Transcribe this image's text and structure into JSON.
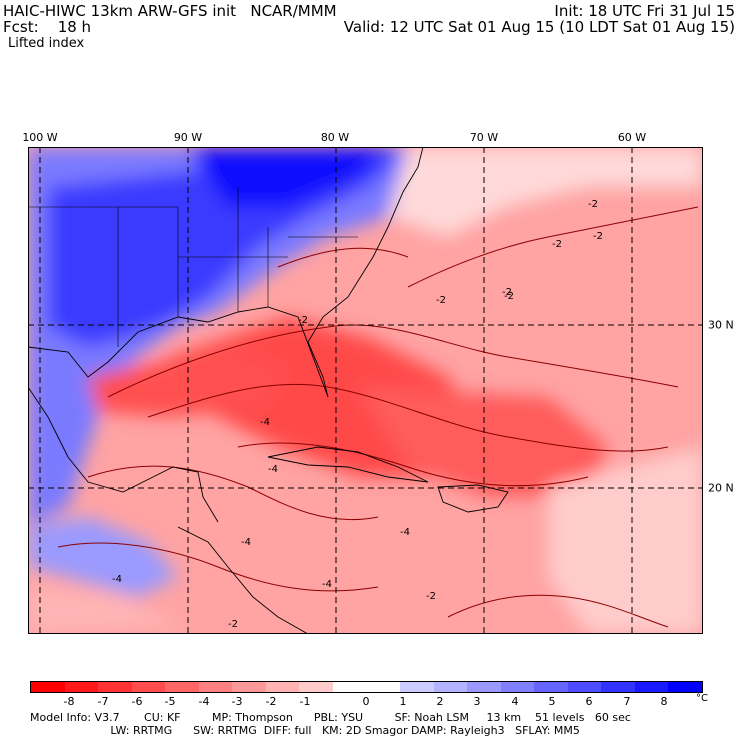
{
  "header": {
    "title_left": "HAIC-HIWC 13km ARW-GFS init   NCAR/MMM",
    "fcst": "Fcst:    18 h",
    "field": "Lifted index",
    "init": "Init: 18 UTC Fri 31 Jul 15",
    "valid": "Valid: 12 UTC Sat 01 Aug 15 (10 LDT Sat 01 Aug 15)"
  },
  "map": {
    "lon_labels": [
      "100 W",
      "90 W",
      "80 W",
      "70 W",
      "60 W"
    ],
    "lat_labels": [
      "30 N",
      "20 N"
    ],
    "contour_labels": [
      "-2",
      "-2",
      "-2",
      "-2",
      "-2",
      "-2",
      "-4",
      "-4",
      "-4",
      "-4",
      "-4",
      "-2",
      "-2",
      "-4",
      "-2"
    ]
  },
  "colorbar": {
    "ticks": [
      "-8",
      "-7",
      "-6",
      "-5",
      "-4",
      "-3",
      "-2",
      "-1",
      "0",
      "1",
      "2",
      "3",
      "4",
      "5",
      "6",
      "7",
      "8"
    ],
    "unit": "°C",
    "colors": [
      "#ff0000",
      "#ff1a1a",
      "#ff3333",
      "#ff4d4d",
      "#ff6666",
      "#ff8080",
      "#ff9999",
      "#ffb3b3",
      "#ffcccc",
      "#ffffff",
      "#ffffff",
      "#ccccff",
      "#b3b3ff",
      "#9999ff",
      "#8080ff",
      "#6666ff",
      "#4d4dff",
      "#3333ff",
      "#1a1aff",
      "#0000ff"
    ]
  },
  "footer": {
    "line1": "Model Info: V3.7       CU: KF         MP: Thompson      PBL: YSU         SF: Noah LSM     13 km    51 levels   60 sec",
    "line2": "                       LW: RRTMG      SW: RRTMG  DIFF: full   KM: 2D Smagor DAMP: Rayleigh3   SFLAY: MM5"
  }
}
